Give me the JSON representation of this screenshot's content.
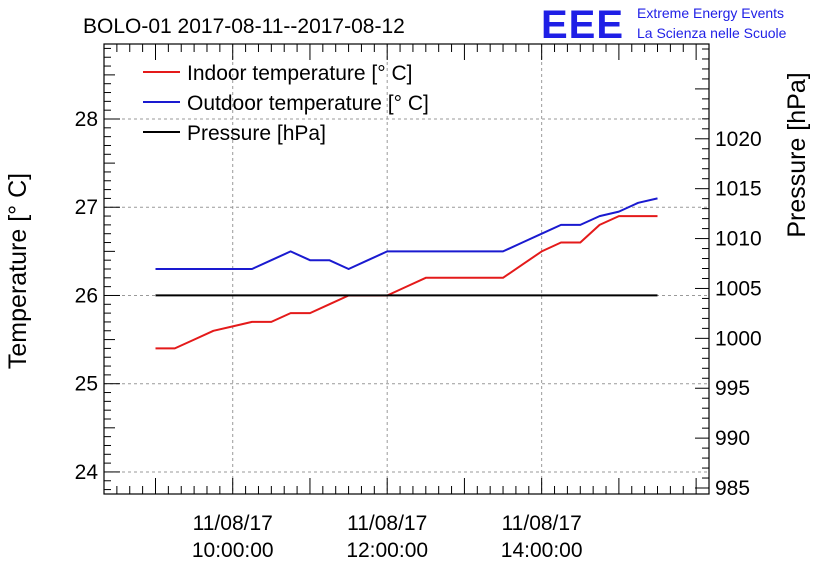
{
  "chart_data": {
    "type": "line",
    "title": "BOLO-01 2017-08-11--2017-08-12",
    "ylabel_left": "Temperature [° C]",
    "ylabel_right": "Pressure [hPa]",
    "x_tick_labels": [
      {
        "date": "11/08/17",
        "time": "10:00:00",
        "x": "10:00"
      },
      {
        "date": "11/08/17",
        "time": "12:00:00",
        "x": "12:00"
      },
      {
        "date": "11/08/17",
        "time": "14:00:00",
        "x": "14:00"
      }
    ],
    "xlim": [
      "08:20",
      "16:10"
    ],
    "ylim_left": [
      23.75,
      28.85
    ],
    "ylim_right": [
      984.4,
      1029.5
    ],
    "y_left_ticks": [
      24,
      25,
      26,
      27,
      28
    ],
    "y_right_ticks": [
      985,
      990,
      995,
      1000,
      1005,
      1010,
      1015,
      1020
    ],
    "grid": true,
    "legend_position": "top-left",
    "series": [
      {
        "name": "Indoor temperature [° C]",
        "color": "#e41a1a",
        "axis": "left",
        "x": [
          "09:00",
          "09:15",
          "09:30",
          "09:45",
          "10:00",
          "10:15",
          "10:30",
          "10:45",
          "11:00",
          "11:15",
          "11:30",
          "11:45",
          "12:00",
          "12:15",
          "12:30",
          "12:45",
          "13:00",
          "13:15",
          "13:30",
          "13:45",
          "14:00",
          "14:15",
          "14:30",
          "14:45",
          "15:00",
          "15:15",
          "15:30"
        ],
        "values": [
          25.4,
          25.4,
          25.5,
          25.6,
          25.65,
          25.7,
          25.7,
          25.8,
          25.8,
          25.9,
          26.0,
          26.0,
          26.0,
          26.1,
          26.2,
          26.2,
          26.2,
          26.2,
          26.2,
          26.35,
          26.5,
          26.6,
          26.6,
          26.8,
          26.9,
          26.9,
          26.9
        ]
      },
      {
        "name": "Outdoor temperature [° C]",
        "color": "#1a1ad0",
        "axis": "left",
        "x": [
          "09:00",
          "09:30",
          "10:00",
          "10:15",
          "10:30",
          "10:45",
          "11:00",
          "11:15",
          "11:30",
          "11:45",
          "12:00",
          "12:30",
          "13:00",
          "13:15",
          "13:30",
          "13:45",
          "14:00",
          "14:15",
          "14:30",
          "14:45",
          "15:00",
          "15:15",
          "15:30"
        ],
        "values": [
          26.3,
          26.3,
          26.3,
          26.3,
          26.4,
          26.5,
          26.4,
          26.4,
          26.3,
          26.4,
          26.5,
          26.5,
          26.5,
          26.5,
          26.5,
          26.6,
          26.7,
          26.8,
          26.8,
          26.9,
          26.95,
          27.05,
          27.1
        ]
      },
      {
        "name": "Pressure [hPa]",
        "color": "#000000",
        "axis": "right",
        "x": [
          "09:00",
          "15:30"
        ],
        "values": [
          1004.3,
          1004.3
        ]
      }
    ]
  },
  "logo": {
    "letters": "EEE",
    "line1": "Extreme Energy Events",
    "line2": "La Scienza nelle Scuole",
    "color": "#1f1fe6"
  }
}
